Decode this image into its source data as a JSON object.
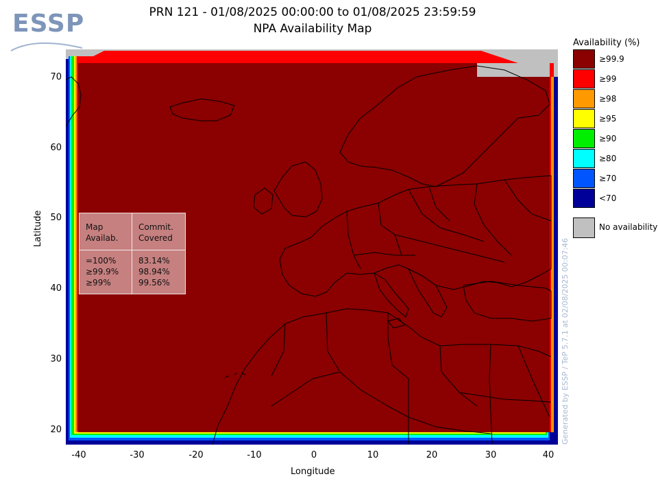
{
  "header": {
    "logo_text": "ESSP",
    "title_line1": "PRN 121 - 01/08/2025 00:00:00 to 01/08/2025 23:59:59",
    "title_line2": "NPA Availability Map"
  },
  "axes": {
    "xlabel": "Longitude",
    "ylabel": "Latitude",
    "x_ticks": [
      "-40",
      "-30",
      "-20",
      "-10",
      "0",
      "10",
      "20",
      "30",
      "40"
    ],
    "y_ticks": [
      "70",
      "60",
      "50",
      "40",
      "30",
      "20"
    ],
    "xlim": [
      -42,
      42
    ],
    "ylim": [
      18,
      74
    ]
  },
  "stats_table": {
    "headers": [
      "Map\nAvailab.",
      "Commit.\nCovered"
    ],
    "rows": [
      {
        "avail": "=100%",
        "covered": "83.14%"
      },
      {
        "avail": "≥99.9%",
        "covered": "98.94%"
      },
      {
        "avail": "≥99%",
        "covered": "99.56%"
      }
    ]
  },
  "legend": {
    "title": "Availability (%)",
    "items": [
      {
        "label": "≥99.9",
        "color": "#8b0000"
      },
      {
        "label": "≥99",
        "color": "#ff0000"
      },
      {
        "label": "≥98",
        "color": "#ff9900"
      },
      {
        "label": "≥95",
        "color": "#ffff00"
      },
      {
        "label": "≥90",
        "color": "#00ee00"
      },
      {
        "label": "≥80",
        "color": "#00ffff"
      },
      {
        "label": "≥70",
        "color": "#0055ff"
      },
      {
        "label": "<70",
        "color": "#000099"
      }
    ],
    "no_availability_label": "No availability",
    "no_availability_color": "#c0c0c0"
  },
  "watermark": "Generated by ESSP / TeP 5.7.1 at 02/08/2025 00:07:46"
}
